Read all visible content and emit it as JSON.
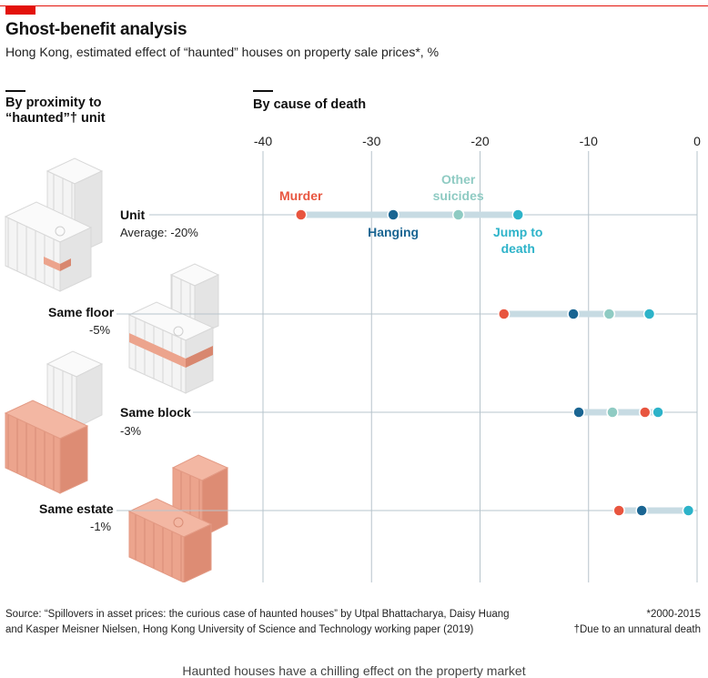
{
  "header": {
    "title": "Ghost-benefit analysis",
    "subtitle": "Hong Kong, estimated effect of “haunted” houses on property sale prices*, %"
  },
  "sections": {
    "left_title_line1": "By proximity to",
    "left_title_line2": "“haunted”† unit",
    "right_title": "By cause of death"
  },
  "colors": {
    "murder": "#e8553f",
    "hanging": "#1a6592",
    "other_suicides": "#8fcbc3",
    "jump_to_death": "#2db3c9",
    "range_bar": "#c7dbe3",
    "grid": "#b7c4cc",
    "accent": "#e3120b",
    "building_white": "#f1f1f1",
    "building_salmon": "#eba58f"
  },
  "chart_data": {
    "type": "dot-range",
    "title": "By cause of death",
    "xlim": [
      -40,
      0
    ],
    "xticks": [
      -40,
      -30,
      -20,
      -10,
      0
    ],
    "tick_labels": [
      "-40",
      "-30",
      "-20",
      "-10",
      "0"
    ],
    "series_keys": [
      "murder",
      "hanging",
      "other_suicides",
      "jump_to_death"
    ],
    "annotations": {
      "murder": [
        "Murder"
      ],
      "hanging": [
        "Hanging"
      ],
      "other_suicides": [
        "Other",
        "suicides"
      ],
      "jump_to_death": [
        "Jump to",
        "death"
      ]
    },
    "rows": [
      {
        "label": "Unit",
        "sub": "Average: -20%",
        "murder": -36.5,
        "hanging": -28.0,
        "other_suicides": -22.0,
        "jump_to_death": -16.5
      },
      {
        "label": "Same floor",
        "sub": "-5%",
        "murder": -17.8,
        "hanging": -11.4,
        "other_suicides": -8.1,
        "jump_to_death": -4.4
      },
      {
        "label": "Same block",
        "sub": "-3%",
        "murder": -4.8,
        "hanging": -10.9,
        "other_suicides": -7.8,
        "jump_to_death": -3.6
      },
      {
        "label": "Same estate",
        "sub": "-1%",
        "murder": -7.2,
        "hanging": -5.1,
        "other_suicides": -0.8,
        "jump_to_death": -0.8
      }
    ]
  },
  "footer": {
    "source_line1": "Source: “Spillovers in asset prices: the curious case of haunted houses” by Utpal Bhattacharya, Daisy Huang",
    "source_line2": "and Kasper Meisner Nielsen, Hong Kong University of Science and Technology working paper (2019)",
    "note1": "*2000-2015",
    "note2": "†Due to an unnatural death"
  },
  "caption": "Haunted houses have a chilling effect on the property market"
}
